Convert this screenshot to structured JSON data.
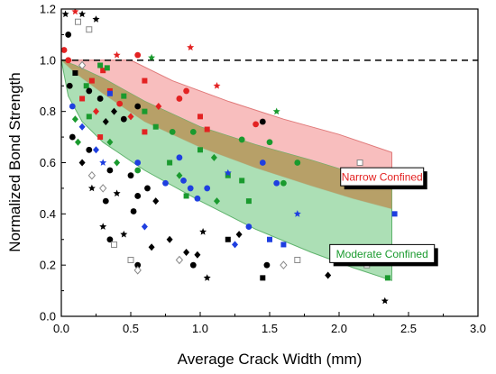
{
  "chart_data": {
    "type": "scatter",
    "title": "",
    "xlabel": "Average Crack Width (mm)",
    "ylabel": "Normalized Bond Strength",
    "xlim": [
      0.0,
      3.0
    ],
    "ylim": [
      0.0,
      1.2
    ],
    "xticks": [
      "0.0",
      "0.5",
      "1.0",
      "1.5",
      "2.0",
      "2.5",
      "3.0"
    ],
    "yticks": [
      "0.0",
      "0.2",
      "0.4",
      "0.6",
      "0.8",
      "1.0",
      "1.2"
    ],
    "grid": false,
    "reference_line": {
      "y": 1.0,
      "style": "dashed",
      "color": "#000000"
    },
    "bands": [
      {
        "label": "Narrow Confined",
        "fill": "#f7b3b3",
        "edge": "#e07a7a",
        "label_color": "#e32222",
        "upper": [
          [
            0.0,
            1.0
          ],
          [
            0.5,
            1.0
          ],
          [
            0.8,
            0.92
          ],
          [
            1.2,
            0.84
          ],
          [
            1.6,
            0.77
          ],
          [
            2.0,
            0.71
          ],
          [
            2.38,
            0.64
          ]
        ],
        "lower": [
          [
            0.0,
            1.0
          ],
          [
            0.1,
            0.95
          ],
          [
            0.3,
            0.87
          ],
          [
            0.6,
            0.76
          ],
          [
            1.0,
            0.66
          ],
          [
            1.4,
            0.58
          ],
          [
            1.8,
            0.51
          ],
          [
            2.1,
            0.46
          ],
          [
            2.38,
            0.42
          ]
        ]
      },
      {
        "label": "Moderate Confined",
        "fill": "#9ed9a8",
        "edge": "#5fb36d",
        "label_color": "#1a9a2e",
        "upper": [
          [
            0.0,
            1.0
          ],
          [
            0.1,
            0.98
          ],
          [
            0.3,
            0.93
          ],
          [
            0.6,
            0.84
          ],
          [
            1.0,
            0.74
          ],
          [
            1.4,
            0.67
          ],
          [
            1.8,
            0.61
          ],
          [
            2.1,
            0.56
          ],
          [
            2.38,
            0.51
          ]
        ],
        "lower": [
          [
            0.0,
            1.0
          ],
          [
            0.05,
            0.86
          ],
          [
            0.15,
            0.76
          ],
          [
            0.3,
            0.68
          ],
          [
            0.6,
            0.57
          ],
          [
            1.0,
            0.45
          ],
          [
            1.4,
            0.34
          ],
          [
            1.8,
            0.25
          ],
          [
            2.1,
            0.19
          ],
          [
            2.38,
            0.14
          ]
        ]
      }
    ],
    "overlap_fill": "#b89a60",
    "annotation_boxes": [
      {
        "text": "Narrow Confined",
        "x": 2.18,
        "y": 0.545
      },
      {
        "text": "Moderate Confined",
        "x": 2.18,
        "y": 0.245
      }
    ],
    "points": [
      {
        "x": 0.02,
        "y": 1.04,
        "color": "#e32222",
        "shape": "circle"
      },
      {
        "x": 0.05,
        "y": 1.0,
        "color": "#e32222",
        "shape": "circle"
      },
      {
        "x": 0.1,
        "y": 1.19,
        "color": "#e32222",
        "shape": "star"
      },
      {
        "x": 0.22,
        "y": 0.92,
        "color": "#e32222",
        "shape": "square"
      },
      {
        "x": 0.3,
        "y": 0.96,
        "color": "#e32222",
        "shape": "square"
      },
      {
        "x": 0.35,
        "y": 0.88,
        "color": "#e32222",
        "shape": "square"
      },
      {
        "x": 0.42,
        "y": 0.83,
        "color": "#e32222",
        "shape": "circle"
      },
      {
        "x": 0.55,
        "y": 1.02,
        "color": "#e32222",
        "shape": "circle"
      },
      {
        "x": 0.6,
        "y": 0.92,
        "color": "#e32222",
        "shape": "square"
      },
      {
        "x": 0.7,
        "y": 0.82,
        "color": "#e32222",
        "shape": "diamond"
      },
      {
        "x": 0.85,
        "y": 0.85,
        "color": "#e32222",
        "shape": "circle"
      },
      {
        "x": 0.9,
        "y": 0.88,
        "color": "#e32222",
        "shape": "circle"
      },
      {
        "x": 0.93,
        "y": 1.05,
        "color": "#e32222",
        "shape": "star"
      },
      {
        "x": 1.0,
        "y": 0.78,
        "color": "#e32222",
        "shape": "square"
      },
      {
        "x": 0.4,
        "y": 1.02,
        "color": "#e32222",
        "shape": "star"
      },
      {
        "x": 0.15,
        "y": 0.85,
        "color": "#e32222",
        "shape": "square"
      },
      {
        "x": 0.25,
        "y": 0.8,
        "color": "#e32222",
        "shape": "diamond"
      },
      {
        "x": 0.5,
        "y": 0.78,
        "color": "#e32222",
        "shape": "diamond"
      },
      {
        "x": 1.05,
        "y": 0.73,
        "color": "#e32222",
        "shape": "square"
      },
      {
        "x": 1.12,
        "y": 0.9,
        "color": "#e32222",
        "shape": "star"
      },
      {
        "x": 1.4,
        "y": 0.75,
        "color": "#e32222",
        "shape": "circle"
      },
      {
        "x": 0.28,
        "y": 0.7,
        "color": "#e32222",
        "shape": "square"
      },
      {
        "x": 0.6,
        "y": 0.72,
        "color": "#e32222",
        "shape": "square"
      },
      {
        "x": 0.18,
        "y": 0.9,
        "color": "#1a9a2e",
        "shape": "square"
      },
      {
        "x": 0.28,
        "y": 0.98,
        "color": "#1a9a2e",
        "shape": "square"
      },
      {
        "x": 0.33,
        "y": 0.97,
        "color": "#1a9a2e",
        "shape": "square"
      },
      {
        "x": 0.45,
        "y": 0.86,
        "color": "#1a9a2e",
        "shape": "square"
      },
      {
        "x": 0.6,
        "y": 0.8,
        "color": "#1a9a2e",
        "shape": "square"
      },
      {
        "x": 0.68,
        "y": 0.74,
        "color": "#1a9a2e",
        "shape": "square"
      },
      {
        "x": 0.65,
        "y": 1.01,
        "color": "#1a9a2e",
        "shape": "star"
      },
      {
        "x": 0.8,
        "y": 0.72,
        "color": "#1a9a2e",
        "shape": "circle"
      },
      {
        "x": 0.95,
        "y": 0.72,
        "color": "#1a9a2e",
        "shape": "circle"
      },
      {
        "x": 1.0,
        "y": 0.65,
        "color": "#1a9a2e",
        "shape": "square"
      },
      {
        "x": 1.1,
        "y": 0.62,
        "color": "#1a9a2e",
        "shape": "diamond"
      },
      {
        "x": 1.3,
        "y": 0.69,
        "color": "#1a9a2e",
        "shape": "circle"
      },
      {
        "x": 1.5,
        "y": 0.68,
        "color": "#1a9a2e",
        "shape": "circle"
      },
      {
        "x": 1.55,
        "y": 0.8,
        "color": "#1a9a2e",
        "shape": "star"
      },
      {
        "x": 1.7,
        "y": 0.6,
        "color": "#1a9a2e",
        "shape": "circle"
      },
      {
        "x": 0.2,
        "y": 0.78,
        "color": "#1a9a2e",
        "shape": "square"
      },
      {
        "x": 0.35,
        "y": 0.68,
        "color": "#1a9a2e",
        "shape": "diamond"
      },
      {
        "x": 0.4,
        "y": 0.6,
        "color": "#1a9a2e",
        "shape": "diamond"
      },
      {
        "x": 0.55,
        "y": 0.57,
        "color": "#1a9a2e",
        "shape": "circle"
      },
      {
        "x": 0.78,
        "y": 0.6,
        "color": "#1a9a2e",
        "shape": "square"
      },
      {
        "x": 1.2,
        "y": 0.55,
        "color": "#1a9a2e",
        "shape": "square"
      },
      {
        "x": 1.3,
        "y": 0.53,
        "color": "#1a9a2e",
        "shape": "square"
      },
      {
        "x": 1.6,
        "y": 0.52,
        "color": "#1a9a2e",
        "shape": "circle"
      },
      {
        "x": 0.85,
        "y": 0.55,
        "color": "#1a9a2e",
        "shape": "diamond"
      },
      {
        "x": 0.9,
        "y": 0.47,
        "color": "#1a9a2e",
        "shape": "square"
      },
      {
        "x": 1.12,
        "y": 0.45,
        "color": "#1a9a2e",
        "shape": "diamond"
      },
      {
        "x": 1.35,
        "y": 0.45,
        "color": "#1a9a2e",
        "shape": "square"
      },
      {
        "x": 2.3,
        "y": 0.22,
        "color": "#1a9a2e",
        "shape": "square"
      },
      {
        "x": 2.35,
        "y": 0.15,
        "color": "#1a9a2e",
        "shape": "square"
      },
      {
        "x": 0.1,
        "y": 0.77,
        "color": "#1a9a2e",
        "shape": "diamond"
      },
      {
        "x": 0.12,
        "y": 0.68,
        "color": "#1a9a2e",
        "shape": "diamond"
      },
      {
        "x": 0.08,
        "y": 0.82,
        "color": "#1f3fe0",
        "shape": "circle"
      },
      {
        "x": 0.15,
        "y": 0.74,
        "color": "#1f3fe0",
        "shape": "diamond"
      },
      {
        "x": 0.25,
        "y": 0.65,
        "color": "#1f3fe0",
        "shape": "diamond"
      },
      {
        "x": 0.3,
        "y": 0.6,
        "color": "#1f3fe0",
        "shape": "star"
      },
      {
        "x": 0.35,
        "y": 0.87,
        "color": "#1f3fe0",
        "shape": "square"
      },
      {
        "x": 0.55,
        "y": 0.6,
        "color": "#1f3fe0",
        "shape": "circle"
      },
      {
        "x": 0.75,
        "y": 0.52,
        "color": "#1f3fe0",
        "shape": "circle"
      },
      {
        "x": 0.85,
        "y": 0.62,
        "color": "#1f3fe0",
        "shape": "circle"
      },
      {
        "x": 0.88,
        "y": 0.53,
        "color": "#1f3fe0",
        "shape": "circle"
      },
      {
        "x": 0.93,
        "y": 0.5,
        "color": "#1f3fe0",
        "shape": "circle"
      },
      {
        "x": 1.05,
        "y": 0.5,
        "color": "#1f3fe0",
        "shape": "circle"
      },
      {
        "x": 0.98,
        "y": 0.46,
        "color": "#1f3fe0",
        "shape": "circle"
      },
      {
        "x": 1.2,
        "y": 0.56,
        "color": "#1f3fe0",
        "shape": "star"
      },
      {
        "x": 1.45,
        "y": 0.6,
        "color": "#1f3fe0",
        "shape": "circle"
      },
      {
        "x": 1.55,
        "y": 0.52,
        "color": "#1f3fe0",
        "shape": "circle"
      },
      {
        "x": 1.7,
        "y": 0.4,
        "color": "#1f3fe0",
        "shape": "star"
      },
      {
        "x": 1.5,
        "y": 0.3,
        "color": "#1f3fe0",
        "shape": "square"
      },
      {
        "x": 1.6,
        "y": 0.28,
        "color": "#1f3fe0",
        "shape": "square"
      },
      {
        "x": 1.25,
        "y": 0.28,
        "color": "#1f3fe0",
        "shape": "diamond"
      },
      {
        "x": 1.35,
        "y": 0.35,
        "color": "#1f3fe0",
        "shape": "circle"
      },
      {
        "x": 0.6,
        "y": 0.35,
        "color": "#1f3fe0",
        "shape": "diamond"
      },
      {
        "x": 2.4,
        "y": 0.4,
        "color": "#1f3fe0",
        "shape": "square"
      },
      {
        "x": 0.03,
        "y": 1.18,
        "color": "#000000",
        "shape": "star"
      },
      {
        "x": 0.05,
        "y": 1.1,
        "color": "#000000",
        "shape": "circle"
      },
      {
        "x": 0.15,
        "y": 1.18,
        "color": "#000000",
        "shape": "star"
      },
      {
        "x": 0.25,
        "y": 1.16,
        "color": "#000000",
        "shape": "star"
      },
      {
        "x": 0.06,
        "y": 0.9,
        "color": "#000000",
        "shape": "circle"
      },
      {
        "x": 0.1,
        "y": 0.95,
        "color": "#000000",
        "shape": "square"
      },
      {
        "x": 0.2,
        "y": 0.88,
        "color": "#000000",
        "shape": "circle"
      },
      {
        "x": 0.28,
        "y": 0.85,
        "color": "#000000",
        "shape": "circle"
      },
      {
        "x": 0.32,
        "y": 0.76,
        "color": "#000000",
        "shape": "diamond"
      },
      {
        "x": 0.38,
        "y": 0.8,
        "color": "#000000",
        "shape": "diamond"
      },
      {
        "x": 0.45,
        "y": 0.77,
        "color": "#000000",
        "shape": "circle"
      },
      {
        "x": 0.55,
        "y": 0.82,
        "color": "#000000",
        "shape": "circle"
      },
      {
        "x": 0.08,
        "y": 0.7,
        "color": "#000000",
        "shape": "circle"
      },
      {
        "x": 0.15,
        "y": 0.6,
        "color": "#000000",
        "shape": "diamond"
      },
      {
        "x": 0.2,
        "y": 0.65,
        "color": "#000000",
        "shape": "circle"
      },
      {
        "x": 0.35,
        "y": 0.57,
        "color": "#000000",
        "shape": "circle"
      },
      {
        "x": 0.5,
        "y": 0.55,
        "color": "#000000",
        "shape": "circle"
      },
      {
        "x": 0.62,
        "y": 0.5,
        "color": "#000000",
        "shape": "circle"
      },
      {
        "x": 0.68,
        "y": 0.45,
        "color": "#000000",
        "shape": "diamond"
      },
      {
        "x": 0.22,
        "y": 0.5,
        "color": "#000000",
        "shape": "star"
      },
      {
        "x": 0.32,
        "y": 0.45,
        "color": "#000000",
        "shape": "circle"
      },
      {
        "x": 0.4,
        "y": 0.48,
        "color": "#000000",
        "shape": "star"
      },
      {
        "x": 0.55,
        "y": 0.47,
        "color": "#000000",
        "shape": "circle"
      },
      {
        "x": 0.52,
        "y": 0.41,
        "color": "#000000",
        "shape": "circle"
      },
      {
        "x": 0.3,
        "y": 0.35,
        "color": "#000000",
        "shape": "star"
      },
      {
        "x": 0.35,
        "y": 0.3,
        "color": "#000000",
        "shape": "circle"
      },
      {
        "x": 0.45,
        "y": 0.32,
        "color": "#000000",
        "shape": "star"
      },
      {
        "x": 0.55,
        "y": 0.2,
        "color": "#000000",
        "shape": "circle"
      },
      {
        "x": 0.65,
        "y": 0.27,
        "color": "#000000",
        "shape": "diamond"
      },
      {
        "x": 0.78,
        "y": 0.3,
        "color": "#000000",
        "shape": "diamond"
      },
      {
        "x": 0.9,
        "y": 0.25,
        "color": "#000000",
        "shape": "diamond"
      },
      {
        "x": 0.95,
        "y": 0.2,
        "color": "#000000",
        "shape": "circle"
      },
      {
        "x": 0.98,
        "y": 0.24,
        "color": "#000000",
        "shape": "diamond"
      },
      {
        "x": 1.02,
        "y": 0.33,
        "color": "#000000",
        "shape": "star"
      },
      {
        "x": 1.05,
        "y": 0.15,
        "color": "#000000",
        "shape": "star"
      },
      {
        "x": 1.2,
        "y": 0.3,
        "color": "#000000",
        "shape": "square"
      },
      {
        "x": 1.28,
        "y": 0.32,
        "color": "#000000",
        "shape": "diamond"
      },
      {
        "x": 1.48,
        "y": 0.2,
        "color": "#000000",
        "shape": "circle"
      },
      {
        "x": 1.45,
        "y": 0.15,
        "color": "#000000",
        "shape": "square"
      },
      {
        "x": 1.45,
        "y": 0.76,
        "color": "#000000",
        "shape": "circle"
      },
      {
        "x": 1.92,
        "y": 0.16,
        "color": "#000000",
        "shape": "diamond"
      },
      {
        "x": 2.33,
        "y": 0.06,
        "color": "#000000",
        "shape": "star"
      },
      {
        "x": 0.12,
        "y": 1.15,
        "color": "#888888",
        "shape": "square"
      },
      {
        "x": 0.2,
        "y": 1.12,
        "color": "#888888",
        "shape": "square"
      },
      {
        "x": 0.15,
        "y": 0.98,
        "color": "#888888",
        "shape": "diamond"
      },
      {
        "x": 0.22,
        "y": 0.55,
        "color": "#888888",
        "shape": "diamond"
      },
      {
        "x": 0.3,
        "y": 0.5,
        "color": "#888888",
        "shape": "diamond"
      },
      {
        "x": 0.38,
        "y": 0.28,
        "color": "#888888",
        "shape": "square"
      },
      {
        "x": 0.5,
        "y": 0.22,
        "color": "#888888",
        "shape": "square"
      },
      {
        "x": 0.55,
        "y": 0.18,
        "color": "#888888",
        "shape": "diamond"
      },
      {
        "x": 0.85,
        "y": 0.22,
        "color": "#888888",
        "shape": "diamond"
      },
      {
        "x": 1.6,
        "y": 0.2,
        "color": "#888888",
        "shape": "diamond"
      },
      {
        "x": 1.7,
        "y": 0.22,
        "color": "#888888",
        "shape": "square"
      },
      {
        "x": 2.2,
        "y": 0.2,
        "color": "#888888",
        "shape": "square"
      },
      {
        "x": 2.15,
        "y": 0.6,
        "color": "#888888",
        "shape": "square"
      }
    ]
  }
}
